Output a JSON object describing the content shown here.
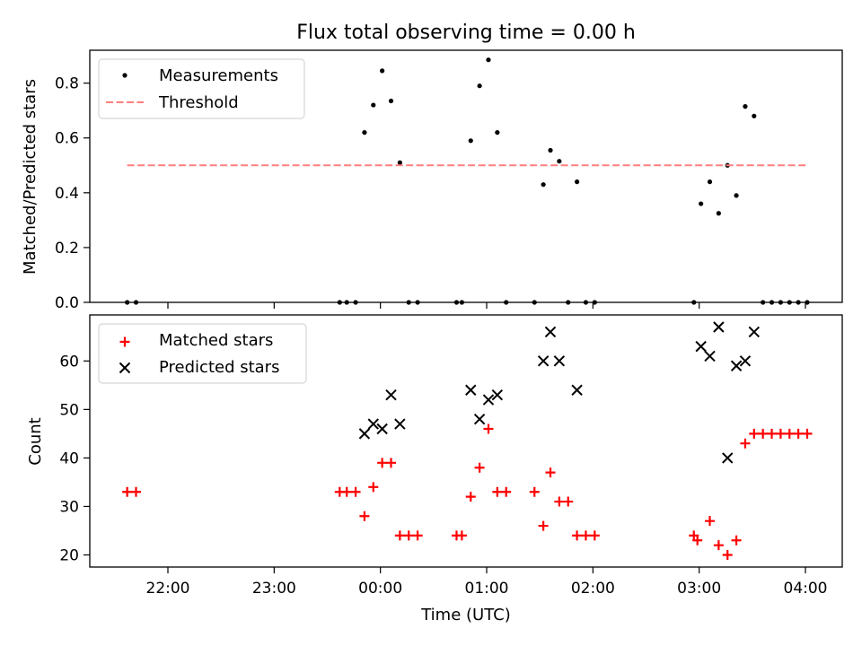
{
  "chart_data": [
    {
      "type": "scatter",
      "title": "Flux total observing time = 0.00 h",
      "ylabel": "Matched/Predicted stars",
      "xlabel": "",
      "ylim": [
        0,
        0.92
      ],
      "yticks": [
        "0.0",
        "0.2",
        "0.4",
        "0.6",
        "0.8"
      ],
      "x_tick_labels_visible": false,
      "legend": {
        "placement": "top-left",
        "entries": [
          "Measurements",
          "Threshold"
        ]
      },
      "series": [
        {
          "name": "Measurements",
          "marker": "dot",
          "color": "#000000",
          "points": [
            [
              "21:37",
              0.0
            ],
            [
              "21:42",
              0.0
            ],
            [
              "23:37",
              0.0
            ],
            [
              "23:41",
              0.0
            ],
            [
              "23:46",
              0.0
            ],
            [
              "23:51",
              0.62
            ],
            [
              "23:56",
              0.72
            ],
            [
              "00:01",
              0.845
            ],
            [
              "00:06",
              0.735
            ],
            [
              "00:11",
              0.51
            ],
            [
              "00:16",
              0.0
            ],
            [
              "00:21",
              0.0
            ],
            [
              "00:43",
              0.0
            ],
            [
              "00:46",
              0.0
            ],
            [
              "00:51",
              0.59
            ],
            [
              "00:56",
              0.79
            ],
            [
              "01:01",
              0.885
            ],
            [
              "01:06",
              0.62
            ],
            [
              "01:11",
              0.0
            ],
            [
              "01:27",
              0.0
            ],
            [
              "01:32",
              0.43
            ],
            [
              "01:36",
              0.555
            ],
            [
              "01:41",
              0.515
            ],
            [
              "01:46",
              0.0
            ],
            [
              "01:51",
              0.44
            ],
            [
              "01:56",
              0.0
            ],
            [
              "02:01",
              0.0
            ],
            [
              "02:57",
              0.0
            ],
            [
              "03:01",
              0.36
            ],
            [
              "03:06",
              0.44
            ],
            [
              "03:11",
              0.325
            ],
            [
              "03:16",
              0.5
            ],
            [
              "03:21",
              0.39
            ],
            [
              "03:26",
              0.715
            ],
            [
              "03:31",
              0.68
            ],
            [
              "03:36",
              0.0
            ],
            [
              "03:41",
              0.0
            ],
            [
              "03:46",
              0.0
            ],
            [
              "03:51",
              0.0
            ],
            [
              "03:56",
              0.0
            ],
            [
              "04:01",
              0.0
            ]
          ]
        },
        {
          "name": "Threshold",
          "marker": "dashed-line",
          "color": "#ff7f7f",
          "points": [
            [
              "21:37",
              0.5
            ],
            [
              "04:01",
              0.5
            ]
          ]
        }
      ]
    },
    {
      "type": "scatter",
      "title": "",
      "ylabel": "Count",
      "xlabel": "Time (UTC)",
      "ylim": [
        17.5,
        69.5
      ],
      "yticks": [
        "20",
        "30",
        "40",
        "50",
        "60"
      ],
      "xticks": [
        "22:00",
        "23:00",
        "00:00",
        "01:00",
        "02:00",
        "03:00",
        "04:00"
      ],
      "legend": {
        "placement": "top-left",
        "entries": [
          "Matched stars",
          "Predicted stars"
        ]
      },
      "series": [
        {
          "name": "Matched stars",
          "marker": "plus",
          "color": "#ff0000",
          "points": [
            [
              "21:37",
              33
            ],
            [
              "21:42",
              33
            ],
            [
              "23:37",
              33
            ],
            [
              "23:41",
              33
            ],
            [
              "23:46",
              33
            ],
            [
              "23:51",
              28
            ],
            [
              "23:56",
              34
            ],
            [
              "00:01",
              39
            ],
            [
              "00:06",
              39
            ],
            [
              "00:11",
              24
            ],
            [
              "00:16",
              24
            ],
            [
              "00:21",
              24
            ],
            [
              "00:43",
              24
            ],
            [
              "00:46",
              24
            ],
            [
              "00:51",
              32
            ],
            [
              "00:56",
              38
            ],
            [
              "01:01",
              46
            ],
            [
              "01:06",
              33
            ],
            [
              "01:11",
              33
            ],
            [
              "01:27",
              33
            ],
            [
              "01:32",
              26
            ],
            [
              "01:36",
              37
            ],
            [
              "01:41",
              31
            ],
            [
              "01:46",
              31
            ],
            [
              "01:51",
              24
            ],
            [
              "01:56",
              24
            ],
            [
              "02:01",
              24
            ],
            [
              "02:57",
              24
            ],
            [
              "02:59",
              23
            ],
            [
              "03:06",
              27
            ],
            [
              "03:11",
              22
            ],
            [
              "03:16",
              20
            ],
            [
              "03:21",
              23
            ],
            [
              "03:26",
              43
            ],
            [
              "03:31",
              45
            ],
            [
              "03:36",
              45
            ],
            [
              "03:41",
              45
            ],
            [
              "03:46",
              45
            ],
            [
              "03:51",
              45
            ],
            [
              "03:56",
              45
            ],
            [
              "04:01",
              45
            ]
          ]
        },
        {
          "name": "Predicted stars",
          "marker": "x",
          "color": "#000000",
          "points": [
            [
              "23:51",
              45
            ],
            [
              "23:56",
              47
            ],
            [
              "00:01",
              46
            ],
            [
              "00:06",
              53
            ],
            [
              "00:11",
              47
            ],
            [
              "00:51",
              54
            ],
            [
              "00:56",
              48
            ],
            [
              "01:01",
              52
            ],
            [
              "01:06",
              53
            ],
            [
              "01:32",
              60
            ],
            [
              "01:36",
              66
            ],
            [
              "01:41",
              60
            ],
            [
              "01:51",
              54
            ],
            [
              "03:01",
              63
            ],
            [
              "03:06",
              61
            ],
            [
              "03:11",
              67
            ],
            [
              "03:16",
              40
            ],
            [
              "03:21",
              59
            ],
            [
              "03:26",
              60
            ],
            [
              "03:31",
              66
            ]
          ]
        }
      ]
    }
  ]
}
